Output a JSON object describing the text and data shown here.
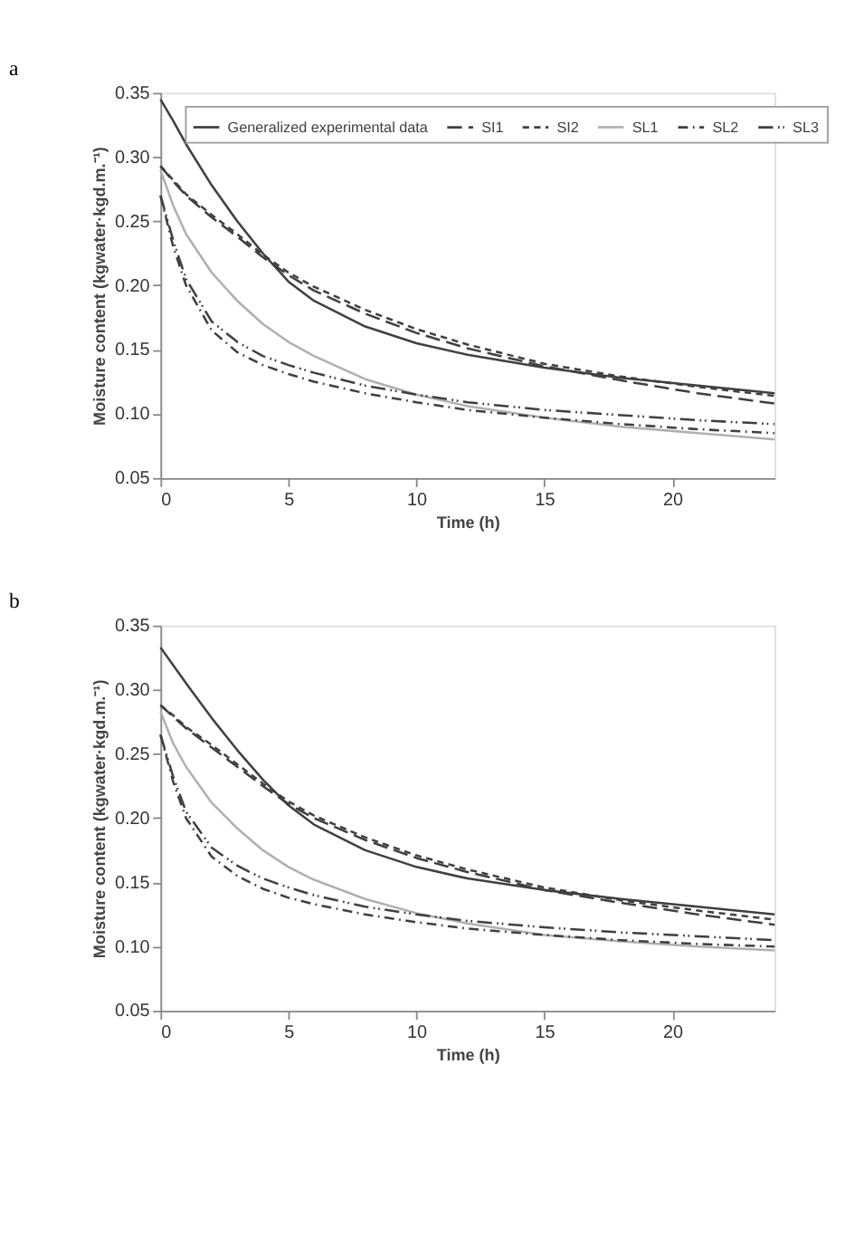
{
  "chart_data": [
    {
      "type": "line",
      "title": "a",
      "xlabel": "Time (h)",
      "ylabel": "Moisture content (kgwater·kgd.m.⁻¹)",
      "xlim": [
        0,
        24
      ],
      "xticks": [
        0,
        5,
        10,
        15,
        20
      ],
      "ylim": [
        0.05,
        0.35
      ],
      "yticks": [
        0.05,
        {
          "value": 0.1,
          "label": "0.10"
        },
        0.15,
        {
          "value": 0.2,
          "label": "0.20"
        },
        0.25,
        {
          "value": 0.3,
          "label": "0.30"
        },
        0.35
      ],
      "grid": false,
      "legend": "top",
      "marker": "none",
      "x": [
        0,
        0.5,
        1,
        2,
        3,
        4,
        5,
        6,
        8,
        10,
        12,
        15,
        18,
        21,
        24
      ],
      "series": [
        {
          "name": "Generalized experimental data",
          "color": "#404040",
          "line_style": "solid",
          "values": [
            0.345,
            0.328,
            0.31,
            0.278,
            0.25,
            0.225,
            0.203,
            0.188,
            0.168,
            0.155,
            0.146,
            0.136,
            0.128,
            0.122,
            0.116
          ]
        },
        {
          "name": "SI1",
          "color": "#404040",
          "line_style": "dashed",
          "values": [
            0.293,
            0.281,
            0.27,
            0.253,
            0.238,
            0.222,
            0.208,
            0.196,
            0.178,
            0.163,
            0.151,
            0.137,
            0.126,
            0.116,
            0.108
          ]
        },
        {
          "name": "SI2",
          "color": "#404040",
          "line_style": "shortdashed",
          "values": [
            0.293,
            0.282,
            0.271,
            0.255,
            0.24,
            0.224,
            0.21,
            0.199,
            0.181,
            0.166,
            0.154,
            0.139,
            0.129,
            0.121,
            0.114
          ]
        },
        {
          "name": "SL1",
          "color": "#b0b0b0",
          "line_style": "solid",
          "values": [
            0.29,
            0.262,
            0.24,
            0.21,
            0.188,
            0.17,
            0.156,
            0.145,
            0.127,
            0.115,
            0.106,
            0.097,
            0.09,
            0.085,
            0.08
          ]
        },
        {
          "name": "SL2",
          "color": "#404040",
          "line_style": "dashdot",
          "values": [
            0.27,
            0.23,
            0.2,
            0.165,
            0.148,
            0.138,
            0.131,
            0.125,
            0.116,
            0.109,
            0.103,
            0.097,
            0.092,
            0.088,
            0.085
          ]
        },
        {
          "name": "SL3",
          "color": "#404040",
          "line_style": "dashdotdot",
          "values": [
            0.27,
            0.235,
            0.205,
            0.172,
            0.156,
            0.145,
            0.138,
            0.132,
            0.122,
            0.115,
            0.109,
            0.103,
            0.099,
            0.095,
            0.092
          ]
        }
      ]
    },
    {
      "type": "line",
      "title": "b",
      "xlabel": "Time (h)",
      "ylabel": "Moisture content (kgwater·kgd.m.⁻¹)",
      "xlim": [
        0,
        24
      ],
      "xticks": [
        0,
        5,
        10,
        15,
        20
      ],
      "ylim": [
        0.05,
        0.35
      ],
      "yticks": [
        0.05,
        {
          "value": 0.1,
          "label": "0.10"
        },
        0.15,
        {
          "value": 0.2,
          "label": "0.20"
        },
        0.25,
        {
          "value": 0.3,
          "label": "0.30"
        },
        0.35
      ],
      "grid": false,
      "legend": false,
      "marker": "none",
      "x": [
        0,
        0.5,
        1,
        2,
        3,
        4,
        5,
        6,
        8,
        10,
        12,
        15,
        18,
        21,
        24
      ],
      "series": [
        {
          "color": "#404040",
          "line_style": "solid",
          "values": [
            0.333,
            0.319,
            0.305,
            0.278,
            0.253,
            0.23,
            0.21,
            0.195,
            0.175,
            0.162,
            0.153,
            0.144,
            0.137,
            0.131,
            0.125
          ]
        },
        {
          "color": "#404040",
          "line_style": "dashed",
          "values": [
            0.288,
            0.279,
            0.27,
            0.255,
            0.24,
            0.225,
            0.211,
            0.2,
            0.183,
            0.169,
            0.158,
            0.144,
            0.134,
            0.125,
            0.117
          ]
        },
        {
          "color": "#404040",
          "line_style": "shortdashed",
          "values": [
            0.288,
            0.28,
            0.271,
            0.257,
            0.242,
            0.227,
            0.213,
            0.202,
            0.185,
            0.171,
            0.16,
            0.146,
            0.136,
            0.128,
            0.121
          ]
        },
        {
          "color": "#b0b0b0",
          "line_style": "solid",
          "values": [
            0.283,
            0.258,
            0.24,
            0.212,
            0.192,
            0.175,
            0.162,
            0.152,
            0.137,
            0.126,
            0.118,
            0.109,
            0.104,
            0.1,
            0.097
          ]
        },
        {
          "color": "#404040",
          "line_style": "dashdot",
          "values": [
            0.265,
            0.228,
            0.2,
            0.17,
            0.155,
            0.145,
            0.138,
            0.133,
            0.125,
            0.119,
            0.114,
            0.109,
            0.105,
            0.102,
            0.1
          ]
        },
        {
          "color": "#404040",
          "line_style": "dashdotdot",
          "values": [
            0.265,
            0.232,
            0.205,
            0.177,
            0.163,
            0.153,
            0.146,
            0.14,
            0.131,
            0.125,
            0.12,
            0.115,
            0.111,
            0.108,
            0.105
          ]
        }
      ]
    }
  ]
}
